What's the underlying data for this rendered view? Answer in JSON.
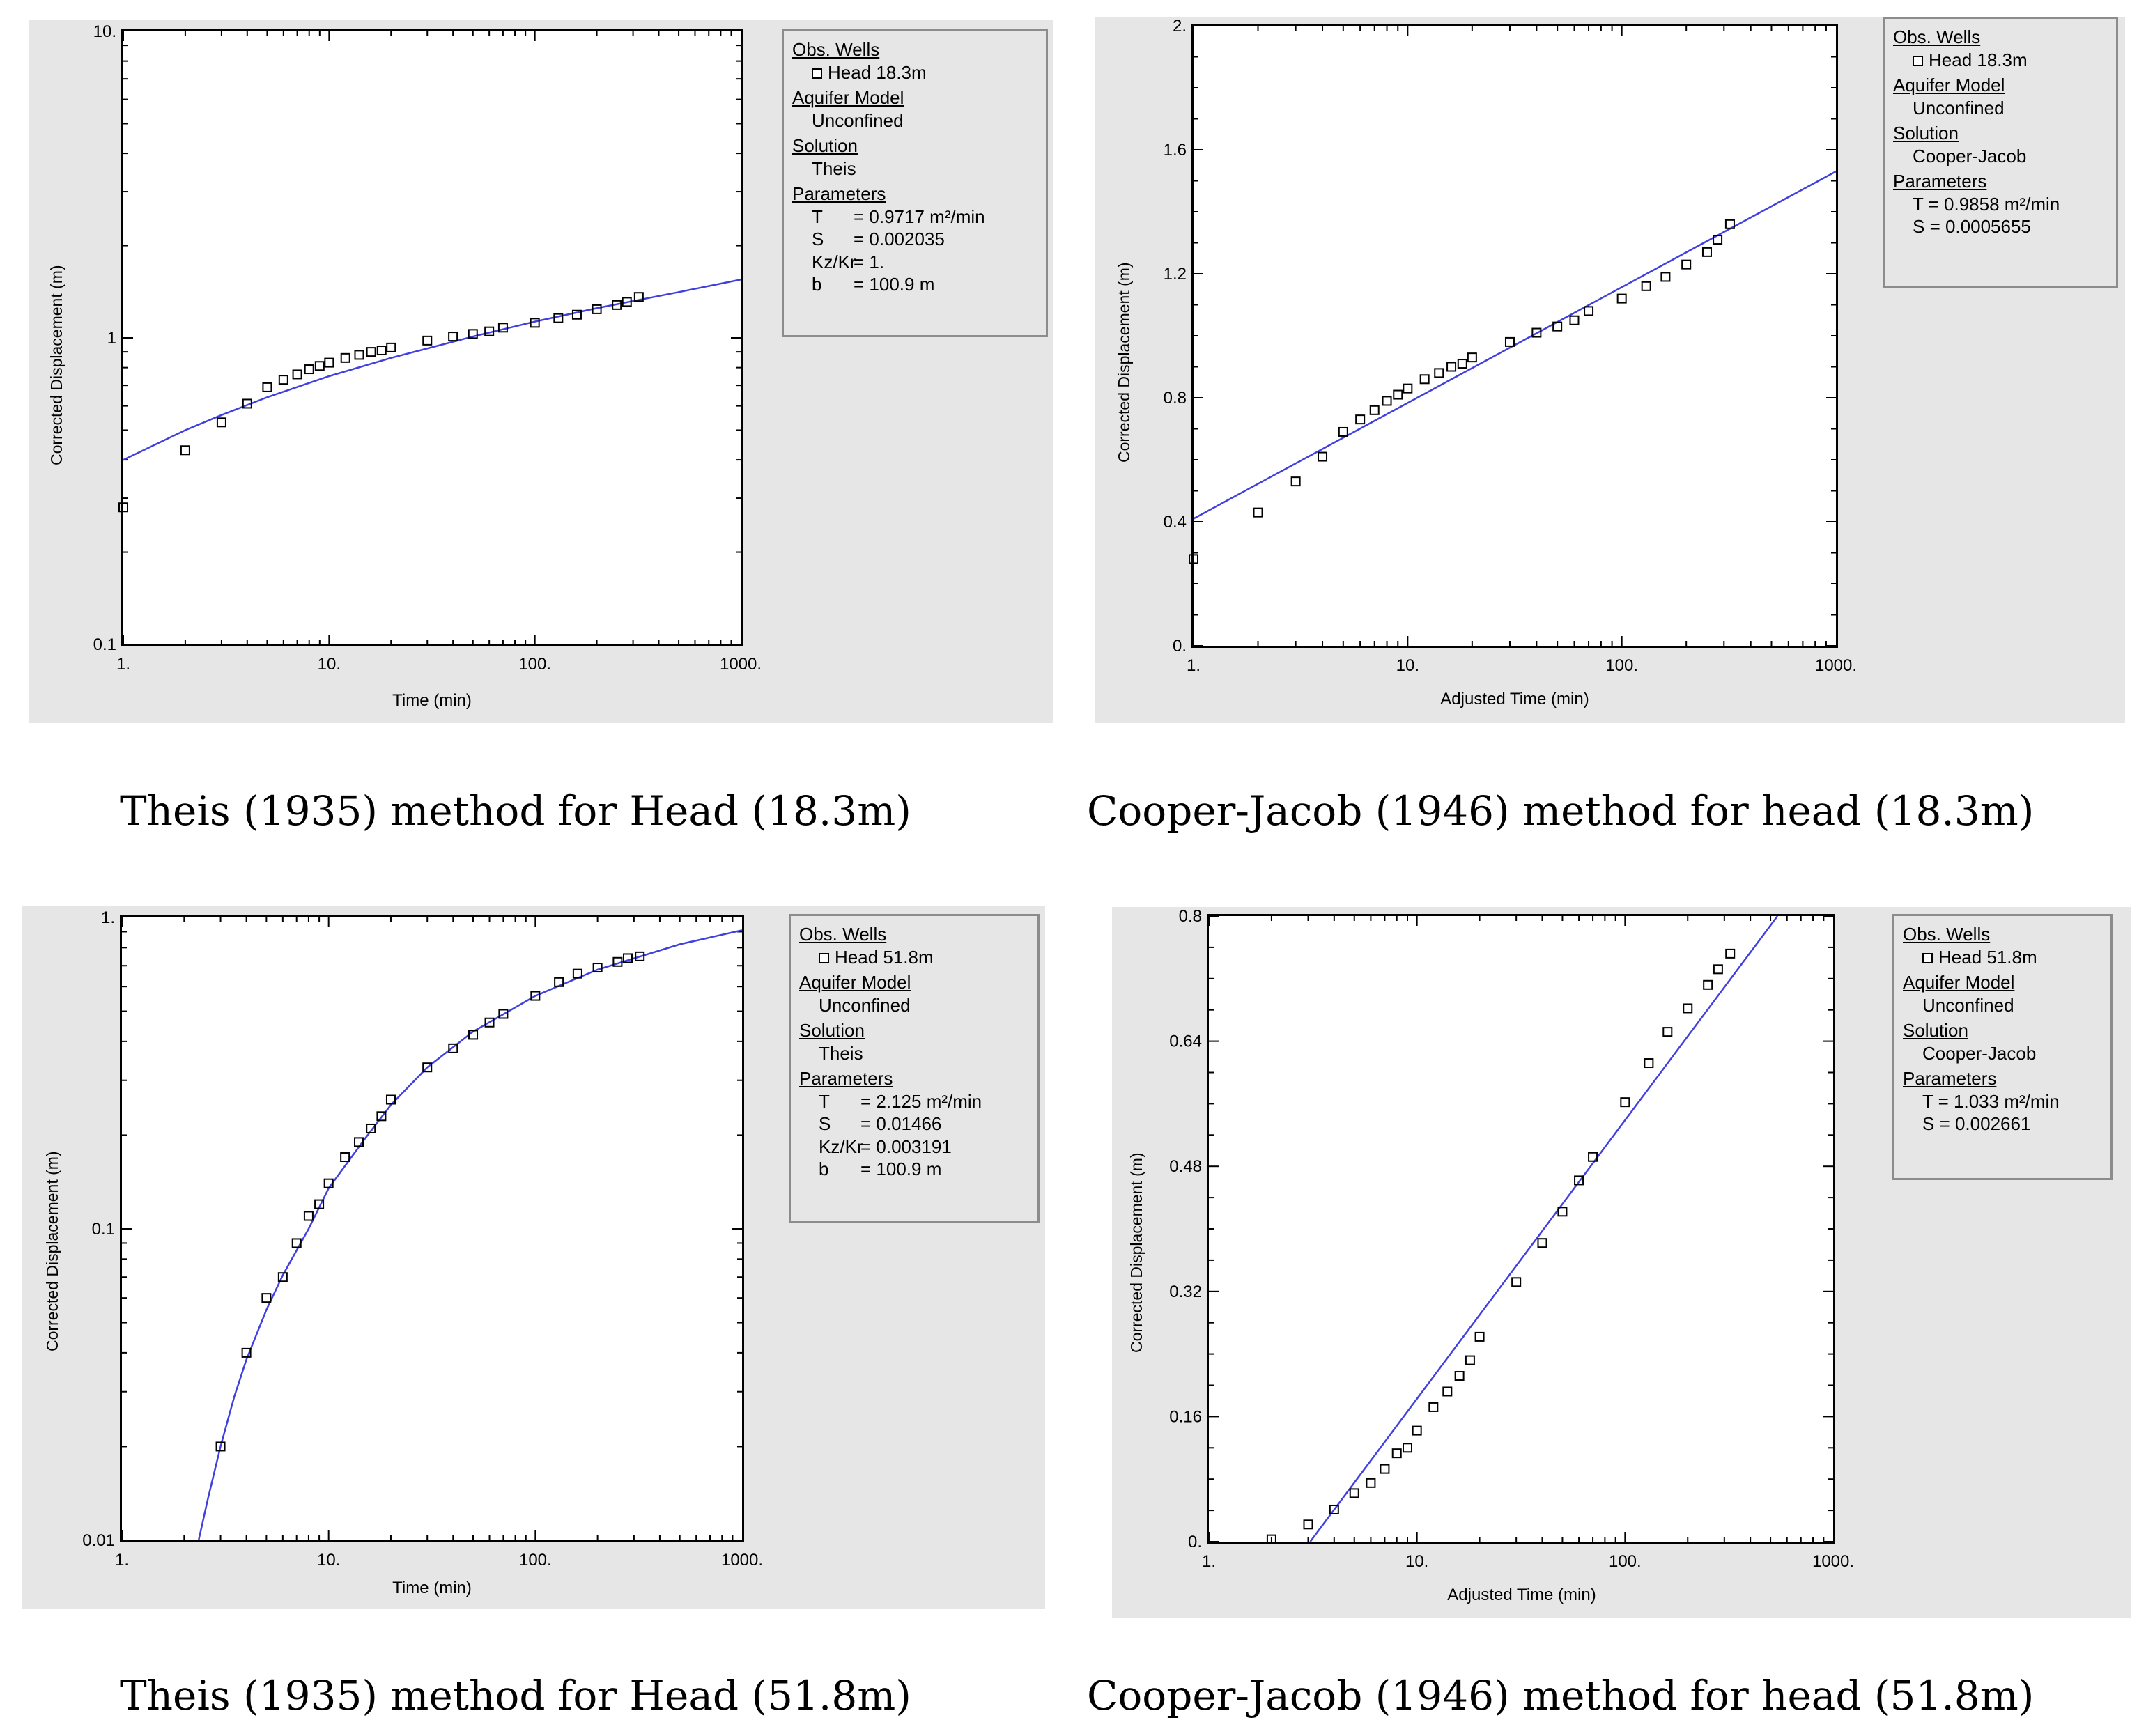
{
  "colors": {
    "panel_bg": "#e6e6e6",
    "curve": "#4040e0",
    "axis": "#000000"
  },
  "captions": {
    "c1": "Theis (1935) method for Head (18.3m)",
    "c2": "Cooper-Jacob (1946) method for head (18.3m)",
    "c3": "Theis (1935) method for Head (51.8m)",
    "c4": "Cooper-Jacob (1946) method for head (51.8m)"
  },
  "legends": [
    {
      "obs_heading": "Obs. Wells",
      "well": "Head 18.3m",
      "model_heading": "Aquifer Model",
      "model": "Unconfined",
      "solution_heading": "Solution",
      "solution": "Theis",
      "params_heading": "Parameters",
      "params": [
        {
          "name": "T",
          "value": "= 0.9717 m²/min"
        },
        {
          "name": "S",
          "value": "= 0.002035"
        },
        {
          "name": "Kz/Kr",
          "value": "= 1."
        },
        {
          "name": "b",
          "value": "= 100.9 m"
        }
      ]
    },
    {
      "obs_heading": "Obs. Wells",
      "well": "Head 18.3m",
      "model_heading": "Aquifer Model",
      "model": "Unconfined",
      "solution_heading": "Solution",
      "solution": "Cooper-Jacob",
      "params_heading": "Parameters",
      "params": [
        {
          "name": "",
          "value": "T = 0.9858 m²/min"
        },
        {
          "name": "",
          "value": "S = 0.0005655"
        }
      ]
    },
    {
      "obs_heading": "Obs. Wells",
      "well": "Head 51.8m",
      "model_heading": "Aquifer Model",
      "model": "Unconfined",
      "solution_heading": "Solution",
      "solution": "Theis",
      "params_heading": "Parameters",
      "params": [
        {
          "name": "T",
          "value": "= 2.125 m²/min"
        },
        {
          "name": "S",
          "value": "= 0.01466"
        },
        {
          "name": "Kz/Kr",
          "value": "= 0.003191"
        },
        {
          "name": "b",
          "value": "= 100.9 m"
        }
      ]
    },
    {
      "obs_heading": "Obs. Wells",
      "well": "Head 51.8m",
      "model_heading": "Aquifer Model",
      "model": "Unconfined",
      "solution_heading": "Solution",
      "solution": "Cooper-Jacob",
      "params_heading": "Parameters",
      "params": [
        {
          "name": "",
          "value": "T = 1.033 m²/min"
        },
        {
          "name": "",
          "value": "S = 0.002661"
        }
      ]
    }
  ],
  "chart_data": [
    {
      "type": "scatter",
      "title": "Theis (1935) method for Head (18.3m)",
      "xlabel": "Time (min)",
      "ylabel": "Corrected Displacement (m)",
      "xscale": "log",
      "yscale": "log",
      "xlim": [
        1,
        1000
      ],
      "ylim": [
        0.1,
        10
      ],
      "xticks": [
        "1.",
        "10.",
        "100.",
        "1000."
      ],
      "yticks": [
        "0.1",
        "1",
        "10."
      ],
      "series": [
        {
          "name": "Head 18.3m",
          "kind": "points",
          "x": [
            1,
            2,
            3,
            4,
            5,
            6,
            7,
            8,
            9,
            10,
            12,
            14,
            16,
            18,
            20,
            30,
            40,
            50,
            60,
            70,
            100,
            130,
            160,
            200,
            250,
            280,
            320
          ],
          "y": [
            0.28,
            0.43,
            0.53,
            0.61,
            0.69,
            0.73,
            0.76,
            0.79,
            0.81,
            0.83,
            0.86,
            0.88,
            0.9,
            0.91,
            0.93,
            0.98,
            1.01,
            1.03,
            1.05,
            1.08,
            1.12,
            1.16,
            1.19,
            1.24,
            1.28,
            1.31,
            1.36
          ]
        },
        {
          "name": "Theis fit",
          "kind": "line",
          "x": [
            1,
            2,
            3,
            5,
            10,
            20,
            50,
            100,
            200,
            500,
            1000
          ],
          "y": [
            0.4,
            0.5,
            0.56,
            0.64,
            0.75,
            0.86,
            1.01,
            1.13,
            1.25,
            1.41,
            1.55
          ]
        }
      ]
    },
    {
      "type": "scatter",
      "title": "Cooper-Jacob (1946) method for head (18.3m)",
      "xlabel": "Adjusted Time (min)",
      "ylabel": "Corrected Displacement (m)",
      "xscale": "log",
      "yscale": "linear",
      "xlim": [
        1,
        1000
      ],
      "ylim": [
        0,
        2
      ],
      "xticks": [
        "1.",
        "10.",
        "100.",
        "1000."
      ],
      "yticks": [
        "0.",
        "0.4",
        "0.8",
        "1.2",
        "1.6",
        "2."
      ],
      "series": [
        {
          "name": "Head 18.3m",
          "kind": "points",
          "x": [
            1,
            2,
            3,
            4,
            5,
            6,
            7,
            8,
            9,
            10,
            12,
            14,
            16,
            18,
            20,
            30,
            40,
            50,
            60,
            70,
            100,
            130,
            160,
            200,
            250,
            280,
            320
          ],
          "y": [
            0.28,
            0.43,
            0.53,
            0.61,
            0.69,
            0.73,
            0.76,
            0.79,
            0.81,
            0.83,
            0.86,
            0.88,
            0.9,
            0.91,
            0.93,
            0.98,
            1.01,
            1.03,
            1.05,
            1.08,
            1.12,
            1.16,
            1.19,
            1.23,
            1.27,
            1.31,
            1.36
          ]
        },
        {
          "name": "Cooper-Jacob fit",
          "kind": "line",
          "x": [
            1,
            1000
          ],
          "y": [
            0.41,
            1.53
          ]
        }
      ]
    },
    {
      "type": "scatter",
      "title": "Theis (1935) method for Head (51.8m)",
      "xlabel": "Time (min)",
      "ylabel": "Corrected Displacement (m)",
      "xscale": "log",
      "yscale": "log",
      "xlim": [
        1,
        1000
      ],
      "ylim": [
        0.01,
        1
      ],
      "xticks": [
        "1.",
        "10.",
        "100.",
        "1000."
      ],
      "yticks": [
        "0.01",
        "0.1",
        "1."
      ],
      "series": [
        {
          "name": "Head 51.8m",
          "kind": "points",
          "x": [
            3,
            4,
            5,
            6,
            7,
            8,
            9,
            10,
            12,
            14,
            16,
            18,
            20,
            30,
            40,
            50,
            60,
            70,
            100,
            130,
            160,
            200,
            250,
            280,
            320
          ],
          "y": [
            0.02,
            0.04,
            0.06,
            0.07,
            0.09,
            0.11,
            0.12,
            0.14,
            0.17,
            0.19,
            0.21,
            0.23,
            0.26,
            0.33,
            0.38,
            0.42,
            0.46,
            0.49,
            0.56,
            0.62,
            0.66,
            0.69,
            0.72,
            0.74,
            0.75
          ]
        },
        {
          "name": "Theis fit",
          "kind": "line",
          "x": [
            2.35,
            2.6,
            3,
            3.5,
            4,
            5,
            6,
            8,
            10,
            15,
            20,
            30,
            50,
            100,
            200,
            500,
            1000
          ],
          "y": [
            0.01,
            0.0135,
            0.02,
            0.029,
            0.038,
            0.055,
            0.071,
            0.1,
            0.135,
            0.195,
            0.25,
            0.33,
            0.43,
            0.56,
            0.68,
            0.82,
            0.91
          ]
        }
      ]
    },
    {
      "type": "scatter",
      "title": "Cooper-Jacob (1946) method for head (51.8m)",
      "xlabel": "Adjusted Time (min)",
      "ylabel": "Corrected Displacement (m)",
      "xscale": "log",
      "yscale": "linear",
      "xlim": [
        1,
        1000
      ],
      "ylim": [
        0,
        0.8
      ],
      "xticks": [
        "1.",
        "10.",
        "100.",
        "1000."
      ],
      "yticks": [
        "0.",
        "0.16",
        "0.32",
        "0.48",
        "0.64",
        "0.8"
      ],
      "series": [
        {
          "name": "Head 51.8m",
          "kind": "points",
          "x": [
            2,
            3,
            4,
            5,
            6,
            7,
            8,
            9,
            10,
            12,
            14,
            16,
            18,
            20,
            30,
            40,
            50,
            60,
            70,
            100,
            130,
            160,
            200,
            250,
            280,
            320
          ],
          "y": [
            0.003,
            0.022,
            0.041,
            0.062,
            0.075,
            0.093,
            0.113,
            0.12,
            0.142,
            0.172,
            0.192,
            0.212,
            0.232,
            0.262,
            0.332,
            0.382,
            0.422,
            0.462,
            0.492,
            0.562,
            0.612,
            0.652,
            0.682,
            0.712,
            0.732,
            0.752
          ]
        },
        {
          "name": "Cooper-Jacob fit",
          "kind": "line",
          "x": [
            3.07,
            540
          ],
          "y": [
            0,
            0.8
          ]
        }
      ]
    }
  ]
}
